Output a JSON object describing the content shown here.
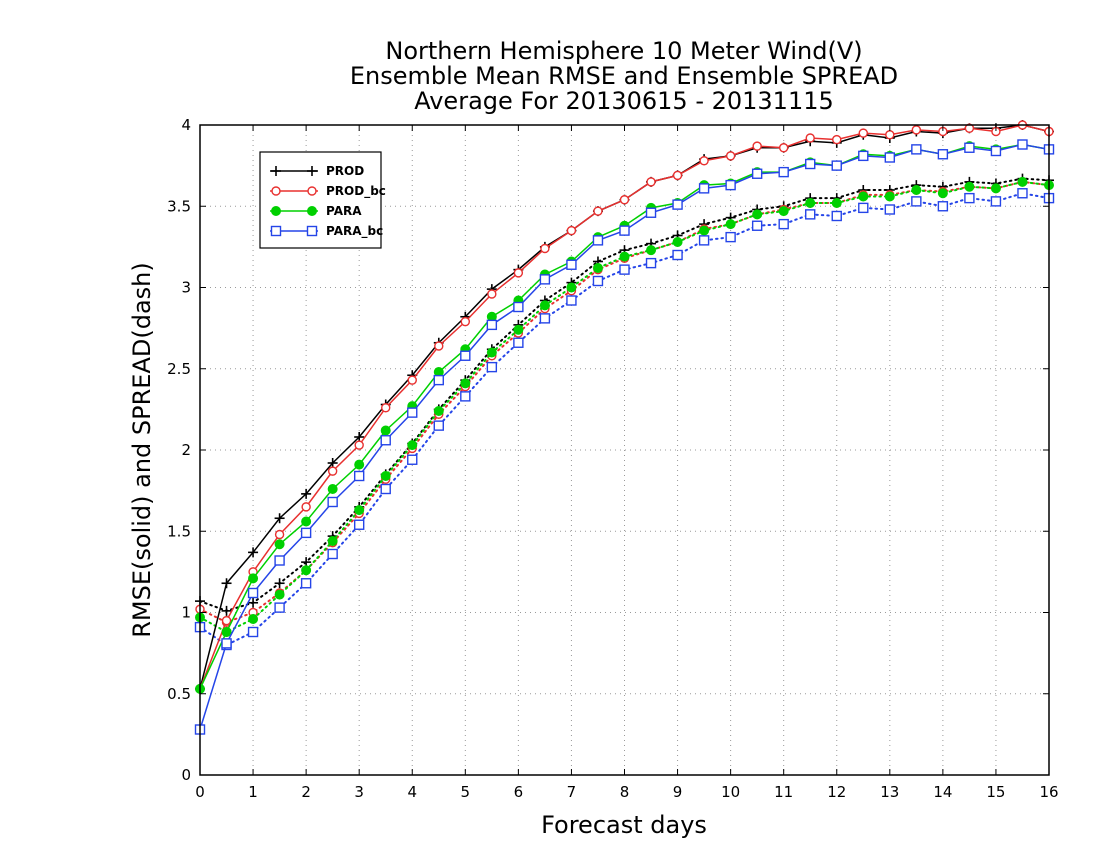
{
  "title": {
    "line1": "Northern Hemisphere 10 Meter Wind(V)",
    "line2": "Ensemble Mean RMSE and Ensemble SPREAD",
    "line3": "Average For 20130615 - 20131115"
  },
  "xlabel": "Forecast days",
  "ylabel": "RMSE(solid) and SPREAD(dash)",
  "colors": {
    "PROD": "#000000",
    "PROD_bc": "#e8302f",
    "PARA": "#00d000",
    "PARA_bc": "#2545e8"
  },
  "chart_data": {
    "type": "line",
    "xlim": [
      0,
      16
    ],
    "ylim": [
      0,
      4
    ],
    "xticks": [
      "0",
      "1",
      "2",
      "3",
      "4",
      "5",
      "6",
      "7",
      "8",
      "9",
      "10",
      "11",
      "12",
      "13",
      "14",
      "15",
      "16"
    ],
    "yticks": [
      "0",
      "0.5",
      "1",
      "1.5",
      "2",
      "2.5",
      "3",
      "3.5",
      "4"
    ],
    "grid": true,
    "legend_position": "top-left",
    "x": [
      0,
      0.5,
      1,
      1.5,
      2,
      2.5,
      3,
      3.5,
      4,
      4.5,
      5,
      5.5,
      6,
      6.5,
      7,
      7.5,
      8,
      8.5,
      9,
      9.5,
      10,
      10.5,
      11,
      11.5,
      12,
      12.5,
      13,
      13.5,
      14,
      14.5,
      15,
      15.5,
      16
    ],
    "series": [
      {
        "name": "PROD",
        "metric": "RMSE",
        "style": "solid",
        "marker": "plus",
        "color": "#000000",
        "values": [
          0.53,
          1.18,
          1.37,
          1.58,
          1.73,
          1.92,
          2.08,
          2.28,
          2.46,
          2.66,
          2.82,
          2.99,
          3.11,
          3.25,
          3.35,
          3.47,
          3.54,
          3.65,
          3.69,
          3.79,
          3.81,
          3.86,
          3.86,
          3.9,
          3.89,
          3.94,
          3.92,
          3.96,
          3.95,
          3.98,
          3.98,
          4.0,
          3.96
        ]
      },
      {
        "name": "PROD_bc",
        "metric": "RMSE",
        "style": "solid",
        "marker": "open-circle",
        "color": "#e8302f",
        "values": [
          0.53,
          0.95,
          1.25,
          1.48,
          1.65,
          1.87,
          2.03,
          2.26,
          2.43,
          2.64,
          2.79,
          2.96,
          3.09,
          3.24,
          3.35,
          3.47,
          3.54,
          3.65,
          3.69,
          3.78,
          3.81,
          3.87,
          3.86,
          3.92,
          3.91,
          3.95,
          3.94,
          3.97,
          3.96,
          3.98,
          3.96,
          4.0,
          3.96
        ]
      },
      {
        "name": "PARA",
        "metric": "RMSE",
        "style": "solid",
        "marker": "filled-circle",
        "color": "#00d000",
        "values": [
          0.53,
          0.88,
          1.21,
          1.42,
          1.56,
          1.76,
          1.91,
          2.12,
          2.27,
          2.48,
          2.62,
          2.82,
          2.92,
          3.08,
          3.16,
          3.31,
          3.38,
          3.49,
          3.52,
          3.63,
          3.64,
          3.71,
          3.71,
          3.77,
          3.75,
          3.82,
          3.81,
          3.85,
          3.82,
          3.87,
          3.85,
          3.88,
          3.85
        ]
      },
      {
        "name": "PARA_bc",
        "metric": "RMSE",
        "style": "solid",
        "marker": "open-square",
        "color": "#2545e8",
        "values": [
          0.28,
          0.81,
          1.12,
          1.32,
          1.49,
          1.68,
          1.84,
          2.06,
          2.23,
          2.43,
          2.58,
          2.77,
          2.88,
          3.05,
          3.14,
          3.29,
          3.35,
          3.46,
          3.51,
          3.61,
          3.63,
          3.7,
          3.71,
          3.76,
          3.75,
          3.81,
          3.8,
          3.85,
          3.82,
          3.86,
          3.84,
          3.88,
          3.85
        ]
      },
      {
        "name": "PROD",
        "metric": "SPREAD",
        "style": "dotted",
        "marker": "plus",
        "color": "#000000",
        "values": [
          1.07,
          1.01,
          1.06,
          1.18,
          1.31,
          1.47,
          1.65,
          1.85,
          2.04,
          2.25,
          2.43,
          2.62,
          2.77,
          2.92,
          3.03,
          3.16,
          3.23,
          3.27,
          3.32,
          3.39,
          3.43,
          3.48,
          3.5,
          3.55,
          3.55,
          3.6,
          3.6,
          3.63,
          3.62,
          3.65,
          3.64,
          3.67,
          3.66
        ]
      },
      {
        "name": "PROD_bc",
        "metric": "SPREAD",
        "style": "dotted",
        "marker": "open-circle",
        "color": "#e8302f",
        "values": [
          1.02,
          0.94,
          1.0,
          1.12,
          1.26,
          1.43,
          1.61,
          1.82,
          2.01,
          2.22,
          2.39,
          2.58,
          2.72,
          2.87,
          2.98,
          3.11,
          3.18,
          3.23,
          3.28,
          3.36,
          3.39,
          3.45,
          3.48,
          3.52,
          3.52,
          3.57,
          3.57,
          3.6,
          3.59,
          3.62,
          3.61,
          3.65,
          3.63
        ]
      },
      {
        "name": "PARA",
        "metric": "SPREAD",
        "style": "dotted",
        "marker": "filled-circle",
        "color": "#00d000",
        "values": [
          0.97,
          0.88,
          0.96,
          1.11,
          1.26,
          1.44,
          1.63,
          1.84,
          2.03,
          2.24,
          2.41,
          2.6,
          2.74,
          2.89,
          3.0,
          3.12,
          3.19,
          3.23,
          3.28,
          3.35,
          3.39,
          3.45,
          3.47,
          3.52,
          3.52,
          3.56,
          3.56,
          3.6,
          3.58,
          3.62,
          3.61,
          3.65,
          3.63
        ]
      },
      {
        "name": "PARA_bc",
        "metric": "SPREAD",
        "style": "dotted",
        "marker": "open-square",
        "color": "#2545e8",
        "values": [
          0.91,
          0.8,
          0.88,
          1.03,
          1.18,
          1.36,
          1.54,
          1.76,
          1.94,
          2.15,
          2.33,
          2.51,
          2.66,
          2.81,
          2.92,
          3.04,
          3.11,
          3.15,
          3.2,
          3.29,
          3.31,
          3.38,
          3.39,
          3.45,
          3.44,
          3.49,
          3.48,
          3.53,
          3.5,
          3.55,
          3.53,
          3.58,
          3.55
        ]
      }
    ],
    "legend": [
      "PROD",
      "PROD_bc",
      "PARA",
      "PARA_bc"
    ]
  }
}
